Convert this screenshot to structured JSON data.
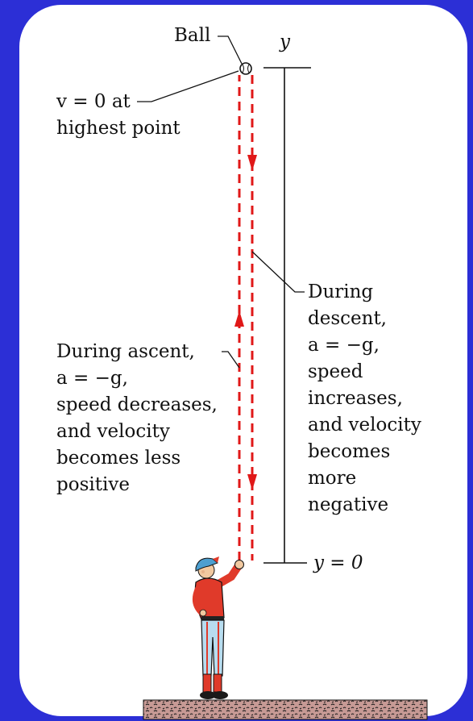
{
  "labels": {
    "ball": "Ball",
    "y_axis": "y",
    "y_zero": "y = 0",
    "highest_point": [
      "v = 0 at",
      "highest point"
    ],
    "ascent": [
      "During ascent,",
      "a = −g,",
      "speed decreases,",
      "and velocity",
      "becomes less",
      "positive"
    ],
    "descent": [
      "During",
      "descent,",
      "a = −g,",
      "speed",
      "increases,",
      "and velocity",
      "becomes",
      "more",
      "negative"
    ]
  },
  "colors": {
    "background": "#2c2fd6",
    "card": "#ffffff",
    "path": "#e01818",
    "ink": "#111111",
    "ground": "#c79a95",
    "shirt": "#e03a2a",
    "cap": "#4c9fd0",
    "pants": "#b8dcef",
    "skin": "#f1c9a0"
  },
  "icons": [
    "ball-icon",
    "boy-figure-icon",
    "ground-texture"
  ]
}
